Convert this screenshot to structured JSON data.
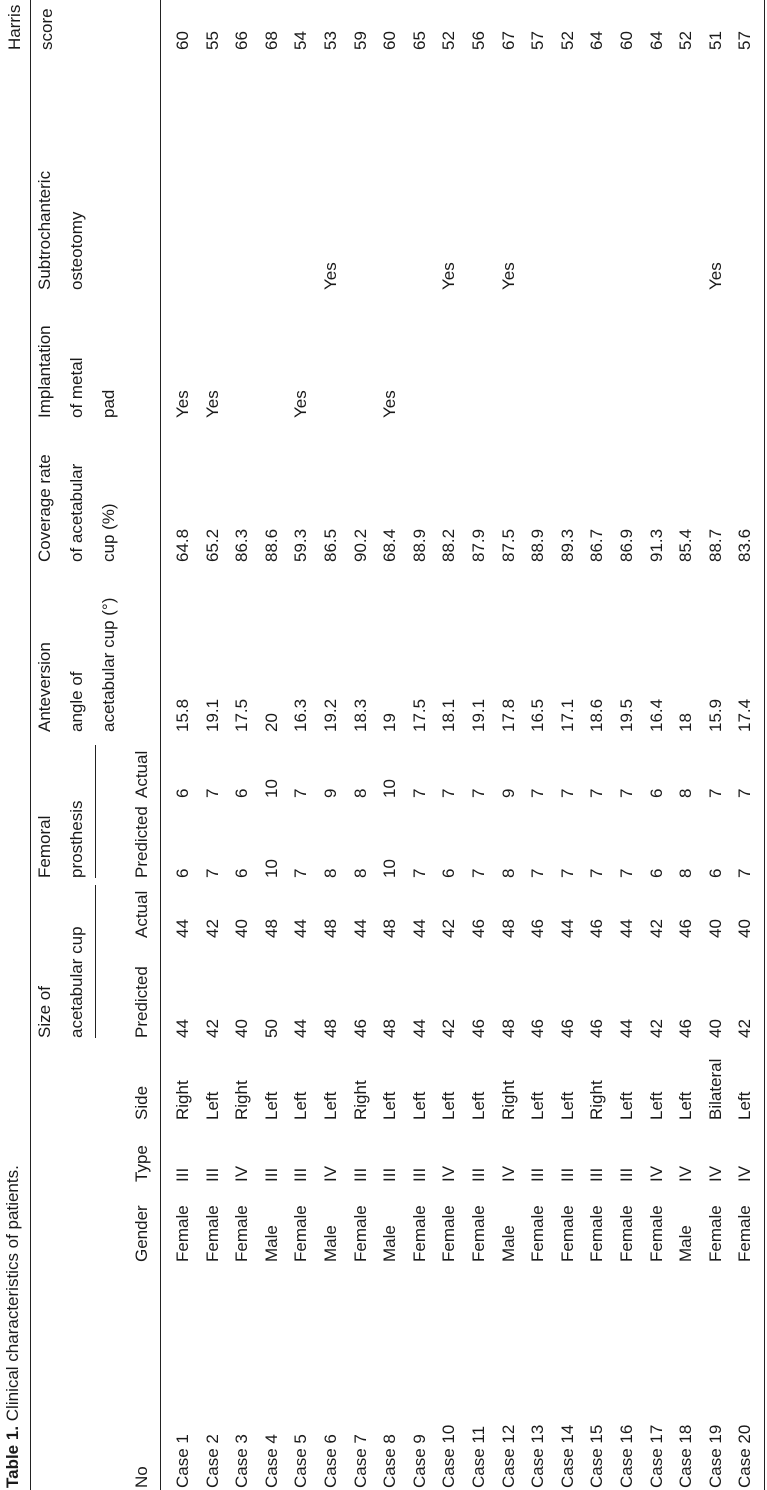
{
  "caption": {
    "label": "Table 1.",
    "text": "Clinical characteristics of patients."
  },
  "table": {
    "header": {
      "no": [
        "No"
      ],
      "gender": [
        "Gender"
      ],
      "type": [
        "Type"
      ],
      "side": [
        "Side"
      ],
      "size_group": [
        "Size of",
        "acetabular cup"
      ],
      "femoral_group": [
        "Femoral",
        "prosthesis"
      ],
      "size_predicted": [
        "Predicted"
      ],
      "size_actual": [
        "Actual"
      ],
      "femoral_predicted": [
        "Predicted"
      ],
      "femoral_actual": [
        "Actual"
      ],
      "anteversion": [
        "Anteversion",
        "angle of",
        "acetabular cup (°)"
      ],
      "coverage": [
        "Coverage rate",
        "of acetabular",
        "cup (%)"
      ],
      "implantation": [
        "Implantation",
        "of metal",
        "pad"
      ],
      "osteotomy": [
        "Subtrochanteric",
        "osteotomy"
      ],
      "harris": [
        "Harris",
        "score"
      ]
    },
    "rows": [
      [
        "Case 1",
        "Female",
        "III",
        "Right",
        44,
        44,
        6,
        6,
        15.8,
        64.8,
        "Yes",
        null,
        60
      ],
      [
        "Case 2",
        "Female",
        "III",
        "Left",
        42,
        42,
        7,
        7,
        19.1,
        65.2,
        "Yes",
        null,
        55
      ],
      [
        "Case 3",
        "Female",
        "IV",
        "Right",
        40,
        40,
        6,
        6,
        17.5,
        86.3,
        null,
        null,
        66
      ],
      [
        "Case 4",
        "Male",
        "III",
        "Left",
        50,
        48,
        10,
        10,
        20,
        88.6,
        null,
        null,
        68
      ],
      [
        "Case 5",
        "Female",
        "III",
        "Left",
        44,
        44,
        7,
        7,
        16.3,
        59.3,
        "Yes",
        null,
        54
      ],
      [
        "Case 6",
        "Male",
        "IV",
        "Left",
        48,
        48,
        8,
        9,
        19.2,
        86.5,
        null,
        "Yes",
        53
      ],
      [
        "Case 7",
        "Female",
        "III",
        "Right",
        46,
        44,
        8,
        8,
        18.3,
        90.2,
        null,
        null,
        59
      ],
      [
        "Case 8",
        "Male",
        "III",
        "Left",
        48,
        48,
        10,
        10,
        19,
        68.4,
        "Yes",
        null,
        60
      ],
      [
        "Case 9",
        "Female",
        "III",
        "Left",
        44,
        44,
        7,
        7,
        17.5,
        88.9,
        null,
        null,
        65
      ],
      [
        "Case 10",
        "Female",
        "IV",
        "Left",
        42,
        42,
        6,
        7,
        18.1,
        88.2,
        null,
        "Yes",
        52
      ],
      [
        "Case 11",
        "Female",
        "III",
        "Left",
        46,
        46,
        7,
        7,
        19.1,
        87.9,
        null,
        null,
        56
      ],
      [
        "Case 12",
        "Male",
        "IV",
        "Right",
        48,
        48,
        8,
        9,
        17.8,
        87.5,
        null,
        "Yes",
        67
      ],
      [
        "Case 13",
        "Female",
        "III",
        "Left",
        46,
        46,
        7,
        7,
        16.5,
        88.9,
        null,
        null,
        57
      ],
      [
        "Case 14",
        "Female",
        "III",
        "Left",
        46,
        44,
        7,
        7,
        17.1,
        89.3,
        null,
        null,
        52
      ],
      [
        "Case 15",
        "Female",
        "III",
        "Right",
        46,
        46,
        7,
        7,
        18.6,
        86.7,
        null,
        null,
        64
      ],
      [
        "Case 16",
        "Female",
        "III",
        "Left",
        44,
        44,
        7,
        7,
        19.5,
        86.9,
        null,
        null,
        60
      ],
      [
        "Case 17",
        "Female",
        "IV",
        "Left",
        42,
        42,
        6,
        6,
        16.4,
        91.3,
        null,
        null,
        64
      ],
      [
        "Case 18",
        "Male",
        "IV",
        "Left",
        46,
        46,
        8,
        8,
        18,
        85.4,
        null,
        null,
        52
      ],
      [
        "Case 19",
        "Female",
        "IV",
        "Bilateral",
        40,
        40,
        6,
        7,
        15.9,
        88.7,
        null,
        "Yes",
        51
      ],
      [
        "Case 20",
        "Female",
        "IV",
        "Left",
        42,
        40,
        7,
        7,
        17.4,
        83.6,
        null,
        null,
        57
      ]
    ]
  }
}
